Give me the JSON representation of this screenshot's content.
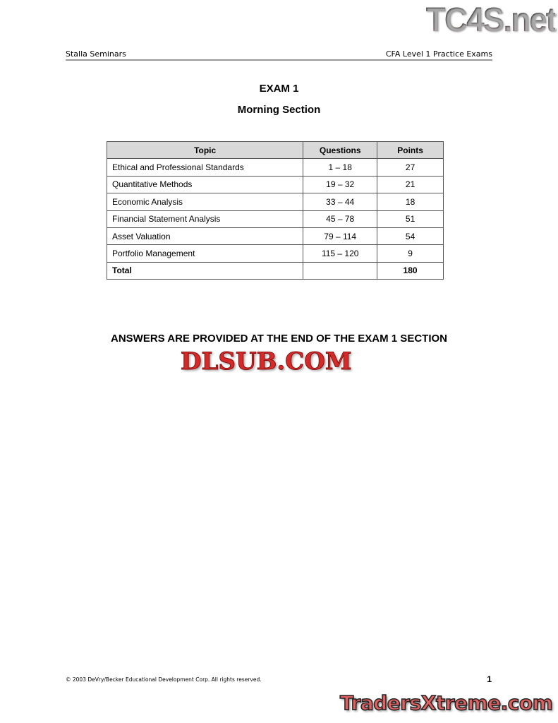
{
  "header": {
    "left": "Stalla Seminars",
    "right": "CFA Level 1 Practice Exams"
  },
  "title": "EXAM 1",
  "subtitle": "Morning Section",
  "table": {
    "headers": [
      "Topic",
      "Questions",
      "Points"
    ],
    "rows": [
      [
        "Ethical and Professional Standards",
        "1 – 18",
        "27"
      ],
      [
        "Quantitative Methods",
        "19 – 32",
        "21"
      ],
      [
        "Economic Analysis",
        "33 – 44",
        "18"
      ],
      [
        "Financial Statement Analysis",
        "45 – 78",
        "51"
      ],
      [
        "Asset Valuation",
        "79 – 114",
        "54"
      ],
      [
        "Portfolio Management",
        "115 – 120",
        "9"
      ]
    ],
    "total": [
      "Total",
      "",
      "180"
    ]
  },
  "answers_note": "ANSWERS ARE PROVIDED AT THE END OF THE EXAM 1 SECTION",
  "watermarks": [
    "TC4S.net",
    "DLSUB.COM",
    "TradersXtreme.com"
  ],
  "footer": {
    "copyright": "© 2003 DeVry/Becker Educational Development Corp.  All rights reserved.",
    "page_number": "1"
  }
}
